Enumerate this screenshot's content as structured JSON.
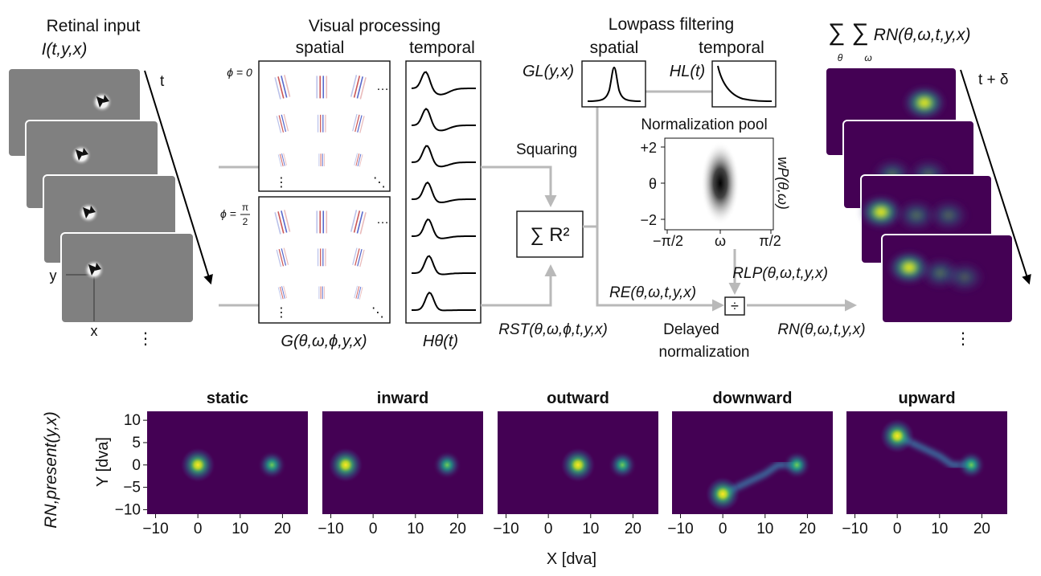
{
  "diagram": {
    "retinal": {
      "title": "Retinal input",
      "formula": "I(t,y,x)",
      "time_axis": "t",
      "y_axis": "y",
      "x_axis": "x",
      "ellipsis": "⋮"
    },
    "visual": {
      "title": "Visual processing",
      "spatial": "spatial",
      "temporal": "temporal",
      "phi0": "ϕ = 0",
      "phi_pi2_prefix": "ϕ =",
      "phi_pi2_num": "π",
      "phi_pi2_den": "2",
      "gabor_label": "G(θ,ω,ϕ,y,x)",
      "temporal_label": "Hθ(t)",
      "dots_h": "…",
      "dots_v": "⋮",
      "dots_d": "⋱"
    },
    "squaring": "Squaring",
    "sum_r2": "∑ R²",
    "r_st": "RST(θ,ω,ϕ,t,y,x)",
    "lowpass": {
      "title": "Lowpass filtering",
      "spatial": "spatial",
      "temporal": "temporal",
      "gl": "GL(y,x)",
      "hl": "HL(t)"
    },
    "pool": {
      "title": "Normalization pool",
      "y_ticks": [
        "+2",
        "θ",
        "−2"
      ],
      "x_ticks": [
        "−π/2",
        "ω",
        "π/2"
      ],
      "side_label": "wP(θ,ω)"
    },
    "r_lp": "RLP(θ,ω,t,y,x)",
    "r_e": "RE(θ,ω,t,y,x)",
    "divide": "÷",
    "delayed_1": "Delayed",
    "delayed_2": "normalization",
    "r_n": "RN(θ,ω,t,y,x)",
    "output_sum": "∑ ∑ RN(θ,ω,t,y,x)",
    "output_sum_sub1": "θ",
    "output_sum_sub2": "ω",
    "output_time": "t + δ",
    "output_ellipsis": "⋮"
  },
  "colors": {
    "arrow": "#b9b9b9",
    "viridis_low": "#440154",
    "viridis_high": "#fde725",
    "gray_frame": "#808080"
  },
  "panels": {
    "ylabel": "Y [dva]",
    "xlabel": "X [dva]",
    "row_label": "RN,present(y,x)",
    "x_ticks": [
      "−10",
      "0",
      "10",
      "20"
    ],
    "y_ticks": [
      "10",
      "5",
      "0",
      "−5",
      "−10"
    ],
    "items": [
      {
        "title": "static"
      },
      {
        "title": "inward"
      },
      {
        "title": "outward"
      },
      {
        "title": "downward"
      },
      {
        "title": "upward"
      }
    ]
  },
  "chart_data": [
    {
      "type": "heatmap",
      "title": "static",
      "xlabel": "X [dva]",
      "ylabel": "Y [dva]",
      "xlim": [
        -12,
        26
      ],
      "ylim": [
        -11,
        12
      ],
      "blobs": [
        {
          "x": 0,
          "y": 0,
          "intensity": 1.0
        },
        {
          "x": 17.5,
          "y": 0,
          "intensity": 0.6
        }
      ],
      "trail": [
        [
          0,
          0
        ],
        [
          17.5,
          0
        ]
      ]
    },
    {
      "type": "heatmap",
      "title": "inward",
      "xlabel": "X [dva]",
      "ylabel": "",
      "xlim": [
        -12,
        26
      ],
      "ylim": [
        -11,
        12
      ],
      "blobs": [
        {
          "x": -6.5,
          "y": 0,
          "intensity": 1.0
        },
        {
          "x": 17.5,
          "y": 0,
          "intensity": 0.6
        }
      ],
      "trail": [
        [
          -6.5,
          0
        ],
        [
          17.5,
          0
        ]
      ]
    },
    {
      "type": "heatmap",
      "title": "outward",
      "xlabel": "X [dva]",
      "ylabel": "",
      "xlim": [
        -12,
        26
      ],
      "ylim": [
        -11,
        12
      ],
      "blobs": [
        {
          "x": 7,
          "y": 0,
          "intensity": 1.0
        },
        {
          "x": 17.5,
          "y": 0,
          "intensity": 0.6
        }
      ],
      "trail": [
        [
          7,
          0
        ],
        [
          17.5,
          0
        ]
      ]
    },
    {
      "type": "heatmap",
      "title": "downward",
      "xlabel": "X [dva]",
      "ylabel": "",
      "xlim": [
        -12,
        26
      ],
      "ylim": [
        -11,
        12
      ],
      "blobs": [
        {
          "x": 0,
          "y": -6.5,
          "intensity": 1.0
        },
        {
          "x": 17.5,
          "y": 0,
          "intensity": 0.6
        }
      ],
      "trail": [
        [
          0,
          -6.5
        ],
        [
          10,
          -2
        ],
        [
          13,
          0
        ],
        [
          17.5,
          0
        ]
      ]
    },
    {
      "type": "heatmap",
      "title": "upward",
      "xlabel": "X [dva]",
      "ylabel": "",
      "xlim": [
        -12,
        26
      ],
      "ylim": [
        -11,
        12
      ],
      "blobs": [
        {
          "x": 0,
          "y": 6.5,
          "intensity": 1.0
        },
        {
          "x": 17.5,
          "y": 0,
          "intensity": 0.6
        }
      ],
      "trail": [
        [
          0,
          6.5
        ],
        [
          10,
          2
        ],
        [
          13,
          0
        ],
        [
          17.5,
          0
        ]
      ]
    }
  ]
}
